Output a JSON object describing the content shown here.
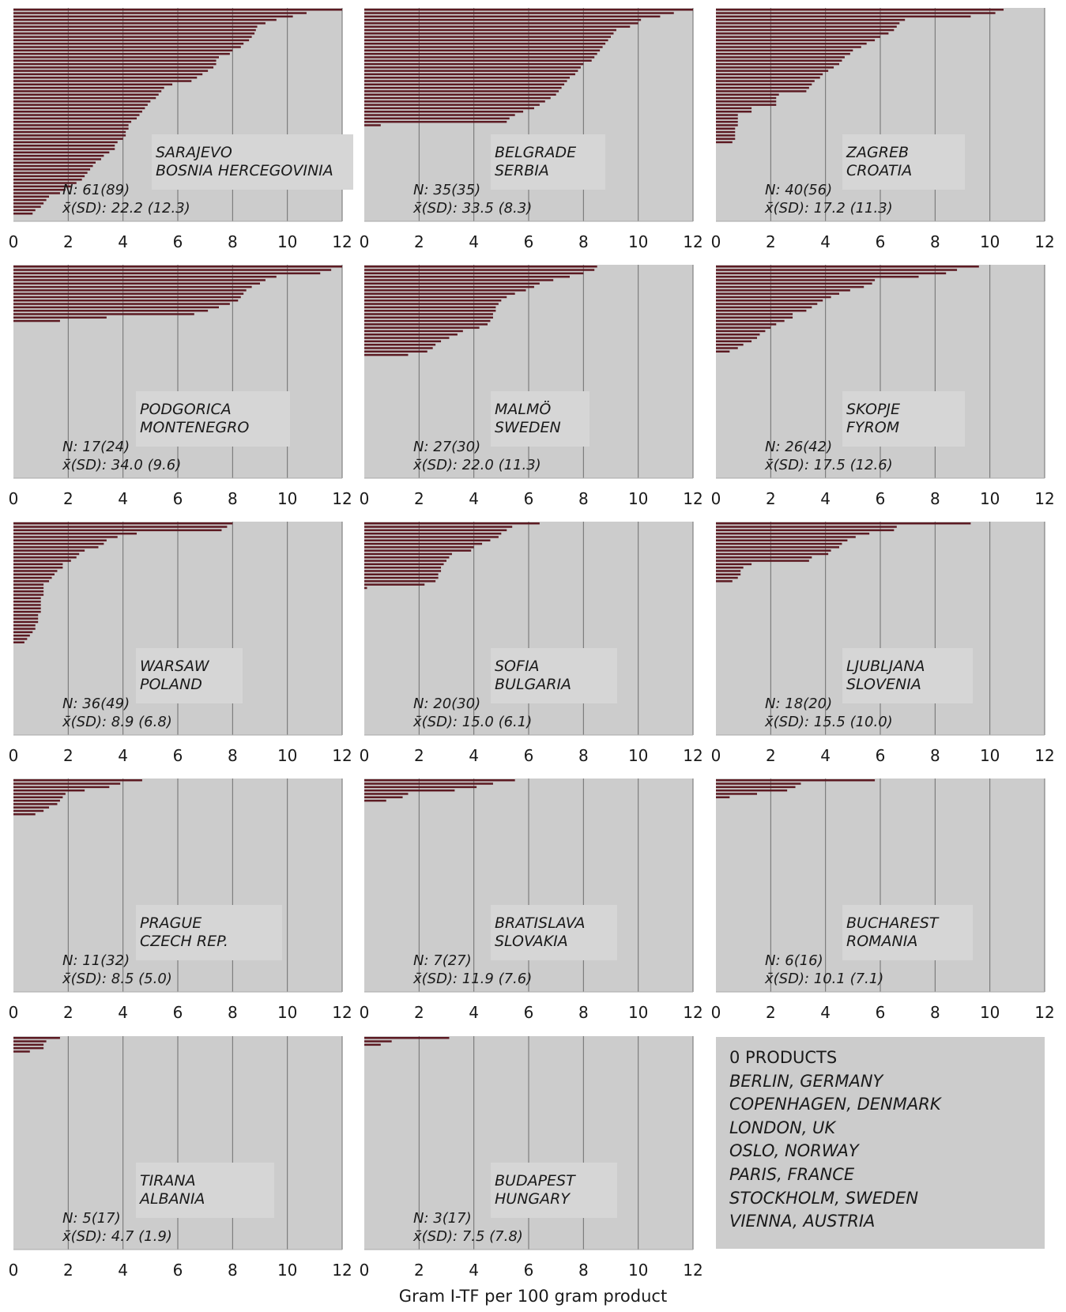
{
  "chart_data": [
    {
      "type": "bar",
      "orientation": "horizontal",
      "city": "SARAJEVO",
      "country": "BOSNIA HERCEGOVINIA",
      "n_label": "N: 61(89)",
      "stats_label": "x̄(SD): 22.2 (12.3)",
      "xlim": [
        0,
        12
      ],
      "xticks": [
        "0",
        "2",
        "4",
        "6",
        "8",
        "10",
        "12"
      ],
      "values": [
        12.0,
        10.7,
        10.2,
        9.6,
        9.2,
        8.9,
        8.85,
        8.8,
        8.7,
        8.6,
        8.4,
        8.3,
        8.0,
        7.9,
        7.5,
        7.4,
        7.4,
        7.3,
        7.1,
        6.9,
        6.7,
        6.5,
        5.8,
        5.5,
        5.4,
        5.3,
        5.2,
        5.0,
        4.9,
        4.8,
        4.7,
        4.6,
        4.5,
        4.3,
        4.2,
        4.2,
        4.1,
        4.1,
        4.0,
        3.8,
        3.7,
        3.7,
        3.5,
        3.3,
        3.2,
        3.0,
        2.9,
        2.8,
        2.7,
        2.6,
        2.5,
        2.3,
        2.1,
        1.9,
        1.7,
        1.3,
        1.2,
        1.1,
        1.0,
        0.8,
        0.7
      ]
    },
    {
      "type": "bar",
      "orientation": "horizontal",
      "city": "BELGRADE",
      "country": "SERBIA",
      "n_label": "N: 35(35)",
      "stats_label": "x̄(SD): 33.5 (8.3)",
      "xlim": [
        0,
        12
      ],
      "xticks": [
        "0",
        "2",
        "4",
        "6",
        "8",
        "10",
        "12"
      ],
      "values": [
        12.0,
        11.3,
        10.8,
        10.1,
        10.0,
        9.7,
        9.2,
        9.1,
        9.0,
        8.9,
        8.8,
        8.7,
        8.6,
        8.5,
        8.4,
        8.3,
        8.0,
        7.9,
        7.8,
        7.7,
        7.5,
        7.4,
        7.3,
        7.2,
        7.1,
        7.0,
        6.8,
        6.6,
        6.4,
        6.2,
        5.8,
        5.5,
        5.3,
        5.2,
        0.6
      ]
    },
    {
      "type": "bar",
      "orientation": "horizontal",
      "city": "ZAGREB",
      "country": "CROATIA",
      "n_label": "N: 40(56)",
      "stats_label": "x̄(SD): 17.2 (11.3)",
      "xlim": [
        0,
        12
      ],
      "xticks": [
        "0",
        "2",
        "4",
        "6",
        "8",
        "10",
        "12"
      ],
      "values": [
        10.5,
        10.2,
        9.3,
        6.9,
        6.7,
        6.6,
        6.5,
        6.3,
        6.0,
        5.8,
        5.5,
        5.3,
        5.0,
        4.9,
        4.7,
        4.6,
        4.5,
        4.3,
        4.1,
        3.9,
        3.8,
        3.6,
        3.5,
        3.4,
        3.3,
        2.3,
        2.2,
        2.2,
        2.2,
        1.3,
        1.3,
        0.8,
        0.8,
        0.8,
        0.8,
        0.7,
        0.7,
        0.7,
        0.7,
        0.6
      ]
    },
    {
      "type": "bar",
      "orientation": "horizontal",
      "city": "PODGORICA",
      "country": "MONTENEGRO",
      "n_label": "N: 17(24)",
      "stats_label": "x̄(SD): 34.0 (9.6)",
      "xlim": [
        0,
        12
      ],
      "xticks": [
        "0",
        "2",
        "4",
        "6",
        "8",
        "10",
        "12"
      ],
      "values": [
        12.0,
        11.6,
        11.2,
        9.6,
        9.2,
        9.0,
        8.7,
        8.5,
        8.4,
        8.3,
        8.2,
        7.9,
        7.5,
        7.1,
        6.6,
        3.4,
        1.7
      ]
    },
    {
      "type": "bar",
      "orientation": "horizontal",
      "city": "MALMÖ",
      "country": "SWEDEN",
      "n_label": "N: 27(30)",
      "stats_label": "x̄(SD): 22.0 (11.3)",
      "xlim": [
        0,
        12
      ],
      "xticks": [
        "0",
        "2",
        "4",
        "6",
        "8",
        "10",
        "12"
      ],
      "values": [
        8.5,
        8.4,
        8.0,
        7.5,
        6.9,
        6.4,
        6.2,
        5.9,
        5.5,
        5.2,
        5.0,
        4.9,
        4.8,
        4.8,
        4.7,
        4.7,
        4.6,
        4.5,
        4.2,
        3.6,
        3.4,
        3.1,
        2.8,
        2.6,
        2.5,
        2.3,
        1.6
      ]
    },
    {
      "type": "bar",
      "orientation": "horizontal",
      "city": "SKOPJE",
      "country": "FYROM",
      "n_label": "N: 26(42)",
      "stats_label": "x̄(SD): 17.5 (12.6)",
      "xlim": [
        0,
        12
      ],
      "xticks": [
        "0",
        "2",
        "4",
        "6",
        "8",
        "10",
        "12"
      ],
      "values": [
        9.6,
        8.8,
        8.4,
        7.4,
        5.8,
        5.7,
        5.4,
        4.9,
        4.5,
        4.2,
        3.9,
        3.7,
        3.5,
        3.3,
        2.8,
        2.8,
        2.5,
        2.2,
        2.0,
        1.8,
        1.6,
        1.5,
        1.3,
        1.0,
        0.8,
        0.5
      ]
    },
    {
      "type": "bar",
      "orientation": "horizontal",
      "city": "WARSAW",
      "country": "POLAND",
      "n_label": "N: 36(49)",
      "stats_label": "x̄(SD): 8.9 (6.8)",
      "xlim": [
        0,
        12
      ],
      "xticks": [
        "0",
        "2",
        "4",
        "6",
        "8",
        "10",
        "12"
      ],
      "values": [
        8.0,
        7.8,
        7.6,
        4.5,
        3.8,
        3.4,
        3.3,
        3.1,
        2.6,
        2.4,
        2.3,
        2.1,
        1.8,
        1.8,
        1.6,
        1.5,
        1.4,
        1.3,
        1.1,
        1.1,
        1.1,
        1.1,
        1.0,
        1.0,
        1.0,
        1.0,
        1.0,
        0.9,
        0.9,
        0.9,
        0.8,
        0.8,
        0.7,
        0.6,
        0.5,
        0.4
      ]
    },
    {
      "type": "bar",
      "orientation": "horizontal",
      "city": "SOFIA",
      "country": "BULGARIA",
      "n_label": "N: 20(30)",
      "stats_label": "x̄(SD): 15.0 (6.1)",
      "xlim": [
        0,
        12
      ],
      "xticks": [
        "0",
        "2",
        "4",
        "6",
        "8",
        "10",
        "12"
      ],
      "values": [
        6.4,
        5.4,
        5.2,
        5.0,
        4.9,
        4.6,
        4.3,
        4.0,
        3.9,
        3.2,
        3.1,
        3.0,
        2.9,
        2.8,
        2.8,
        2.7,
        2.7,
        2.6,
        2.2,
        0.1
      ]
    },
    {
      "type": "bar",
      "orientation": "horizontal",
      "city": "LJUBLJANA",
      "country": "SLOVENIA",
      "n_label": "N: 18(20)",
      "stats_label": "x̄(SD): 15.5 (10.0)",
      "xlim": [
        0,
        12
      ],
      "xticks": [
        "0",
        "2",
        "4",
        "6",
        "8",
        "10",
        "12"
      ],
      "values": [
        9.3,
        6.6,
        6.5,
        5.6,
        5.1,
        4.8,
        4.6,
        4.5,
        4.2,
        4.1,
        3.5,
        3.4,
        1.3,
        1.0,
        0.9,
        0.9,
        0.8,
        0.6
      ]
    },
    {
      "type": "bar",
      "orientation": "horizontal",
      "city": "PRAGUE",
      "country": "CZECH REP.",
      "n_label": "N: 11(32)",
      "stats_label": "x̄(SD): 8.5 (5.0)",
      "xlim": [
        0,
        12
      ],
      "xticks": [
        "0",
        "2",
        "4",
        "6",
        "8",
        "10",
        "12"
      ],
      "values": [
        4.7,
        3.9,
        3.5,
        2.6,
        1.9,
        1.8,
        1.7,
        1.6,
        1.3,
        1.1,
        0.8
      ]
    },
    {
      "type": "bar",
      "orientation": "horizontal",
      "city": "BRATISLAVA",
      "country": "SLOVAKIA",
      "n_label": "N: 7(27)",
      "stats_label": "x̄(SD): 11.9 (7.6)",
      "xlim": [
        0,
        12
      ],
      "xticks": [
        "0",
        "2",
        "4",
        "6",
        "8",
        "10",
        "12"
      ],
      "values": [
        5.5,
        4.7,
        4.1,
        3.3,
        1.6,
        1.4,
        0.8
      ]
    },
    {
      "type": "bar",
      "orientation": "horizontal",
      "city": "BUCHAREST",
      "country": "ROMANIA",
      "n_label": "N: 6(16)",
      "stats_label": "x̄(SD): 10.1 (7.1)",
      "xlim": [
        0,
        12
      ],
      "xticks": [
        "0",
        "2",
        "4",
        "6",
        "8",
        "10",
        "12"
      ],
      "values": [
        5.8,
        3.1,
        2.9,
        2.6,
        1.5,
        0.5
      ]
    },
    {
      "type": "bar",
      "orientation": "horizontal",
      "city": "TIRANA",
      "country": "ALBANIA",
      "n_label": "N: 5(17)",
      "stats_label": "x̄(SD): 4.7 (1.9)",
      "xlim": [
        0,
        12
      ],
      "xticks": [
        "0",
        "2",
        "4",
        "6",
        "8",
        "10",
        "12"
      ],
      "values": [
        1.7,
        1.2,
        1.1,
        1.1,
        0.6
      ]
    },
    {
      "type": "bar",
      "orientation": "horizontal",
      "city": "BUDAPEST",
      "country": "HUNGARY",
      "n_label": "N: 3(17)",
      "stats_label": "x̄(SD): 7.5 (7.8)",
      "xlim": [
        0,
        12
      ],
      "xticks": [
        "0",
        "2",
        "4",
        "6",
        "8",
        "10",
        "12"
      ],
      "values": [
        3.1,
        1.0,
        0.6
      ]
    }
  ],
  "zero_products": {
    "title": "0 PRODUCTS",
    "cities": [
      "BERLIN, GERMANY",
      "COPENHAGEN, DENMARK",
      "LONDON, UK",
      "OSLO, NORWAY",
      "PARIS, FRANCE",
      "STOCKHOLM, SWEDEN",
      "VIENNA, AUSTRIA"
    ]
  },
  "x_axis_title": "Gram I-TF per 100 gram product",
  "colors": {
    "bar": "#5c1a22",
    "panel": "#cccccc",
    "label_box": "#d6d6d6",
    "gridline": "#6e6e6e"
  }
}
